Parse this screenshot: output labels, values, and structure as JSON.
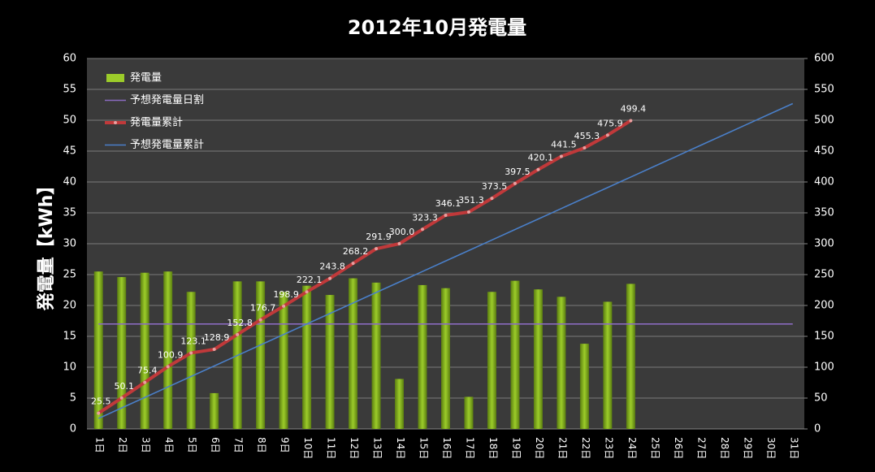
{
  "chart_data": {
    "type": "bar",
    "title": "2012年10月発電量",
    "y_label": "発電量【kWh】",
    "categories": [
      "1日",
      "2日",
      "3日",
      "4日",
      "5日",
      "6日",
      "7日",
      "8日",
      "9日",
      "10日",
      "11日",
      "12日",
      "13日",
      "14日",
      "15日",
      "16日",
      "17日",
      "18日",
      "19日",
      "20日",
      "21日",
      "22日",
      "23日",
      "24日",
      "25日",
      "26日",
      "27日",
      "28日",
      "29日",
      "30日",
      "31日"
    ],
    "ylim": [
      0,
      60
    ],
    "yticks": [
      0,
      5,
      10,
      15,
      20,
      25,
      30,
      35,
      40,
      45,
      50,
      55,
      60
    ],
    "y2lim": [
      0,
      600
    ],
    "y2ticks": [
      0,
      50,
      100,
      150,
      200,
      250,
      300,
      350,
      400,
      450,
      500,
      550,
      600
    ],
    "grid": true,
    "legend": "upper left",
    "series": [
      {
        "name": "発電量",
        "type": "bar",
        "color": "#9ccc2a",
        "values": [
          25.5,
          24.6,
          25.3,
          25.5,
          22.2,
          5.8,
          23.9,
          23.9,
          22.2,
          23.2,
          21.7,
          24.4,
          23.7,
          8.1,
          23.3,
          22.8,
          5.2,
          22.2,
          24.0,
          22.6,
          21.4,
          13.8,
          20.6,
          23.5,
          null,
          null,
          null,
          null,
          null,
          null,
          null
        ]
      },
      {
        "name": "予想発電量日割",
        "type": "line",
        "color": "#8a6bbf",
        "values": [
          17,
          17,
          17,
          17,
          17,
          17,
          17,
          17,
          17,
          17,
          17,
          17,
          17,
          17,
          17,
          17,
          17,
          17,
          17,
          17,
          17,
          17,
          17,
          17,
          17,
          17,
          17,
          17,
          17,
          17,
          17
        ]
      },
      {
        "name": "発電量累計",
        "type": "line",
        "axis": "y2",
        "color": "#c0393a",
        "markers": true,
        "values": [
          25.5,
          50.1,
          75.4,
          100.9,
          123.1,
          128.9,
          152.8,
          176.7,
          198.9,
          222.1,
          243.8,
          268.2,
          291.9,
          300.0,
          323.3,
          346.1,
          351.3,
          373.5,
          397.5,
          420.1,
          441.5,
          455.3,
          475.9,
          499.4,
          null,
          null,
          null,
          null,
          null,
          null,
          null
        ],
        "value_labels": [
          "25.5",
          "50.1",
          "75.4",
          "100.9",
          "123.1",
          "128.9",
          "152.8",
          "176.7",
          "198.9",
          "222.1",
          "243.8",
          "268.2",
          "291.9",
          "300.0",
          "323.3",
          "346.1",
          "351.3",
          "373.5",
          "397.5",
          "420.1",
          "441.5",
          "455.3",
          "475.9",
          "499.4",
          null,
          null,
          null,
          null,
          null,
          null,
          null
        ]
      },
      {
        "name": "予想発電量累計",
        "type": "line",
        "axis": "y2",
        "color": "#4a7fc8",
        "values": [
          17,
          34,
          51,
          68,
          85,
          102,
          119,
          136,
          153,
          170,
          187,
          204,
          221,
          238,
          255,
          272,
          289,
          306,
          323,
          340,
          357,
          374,
          391,
          408,
          425,
          442,
          459,
          476,
          493,
          510,
          527
        ]
      }
    ]
  }
}
